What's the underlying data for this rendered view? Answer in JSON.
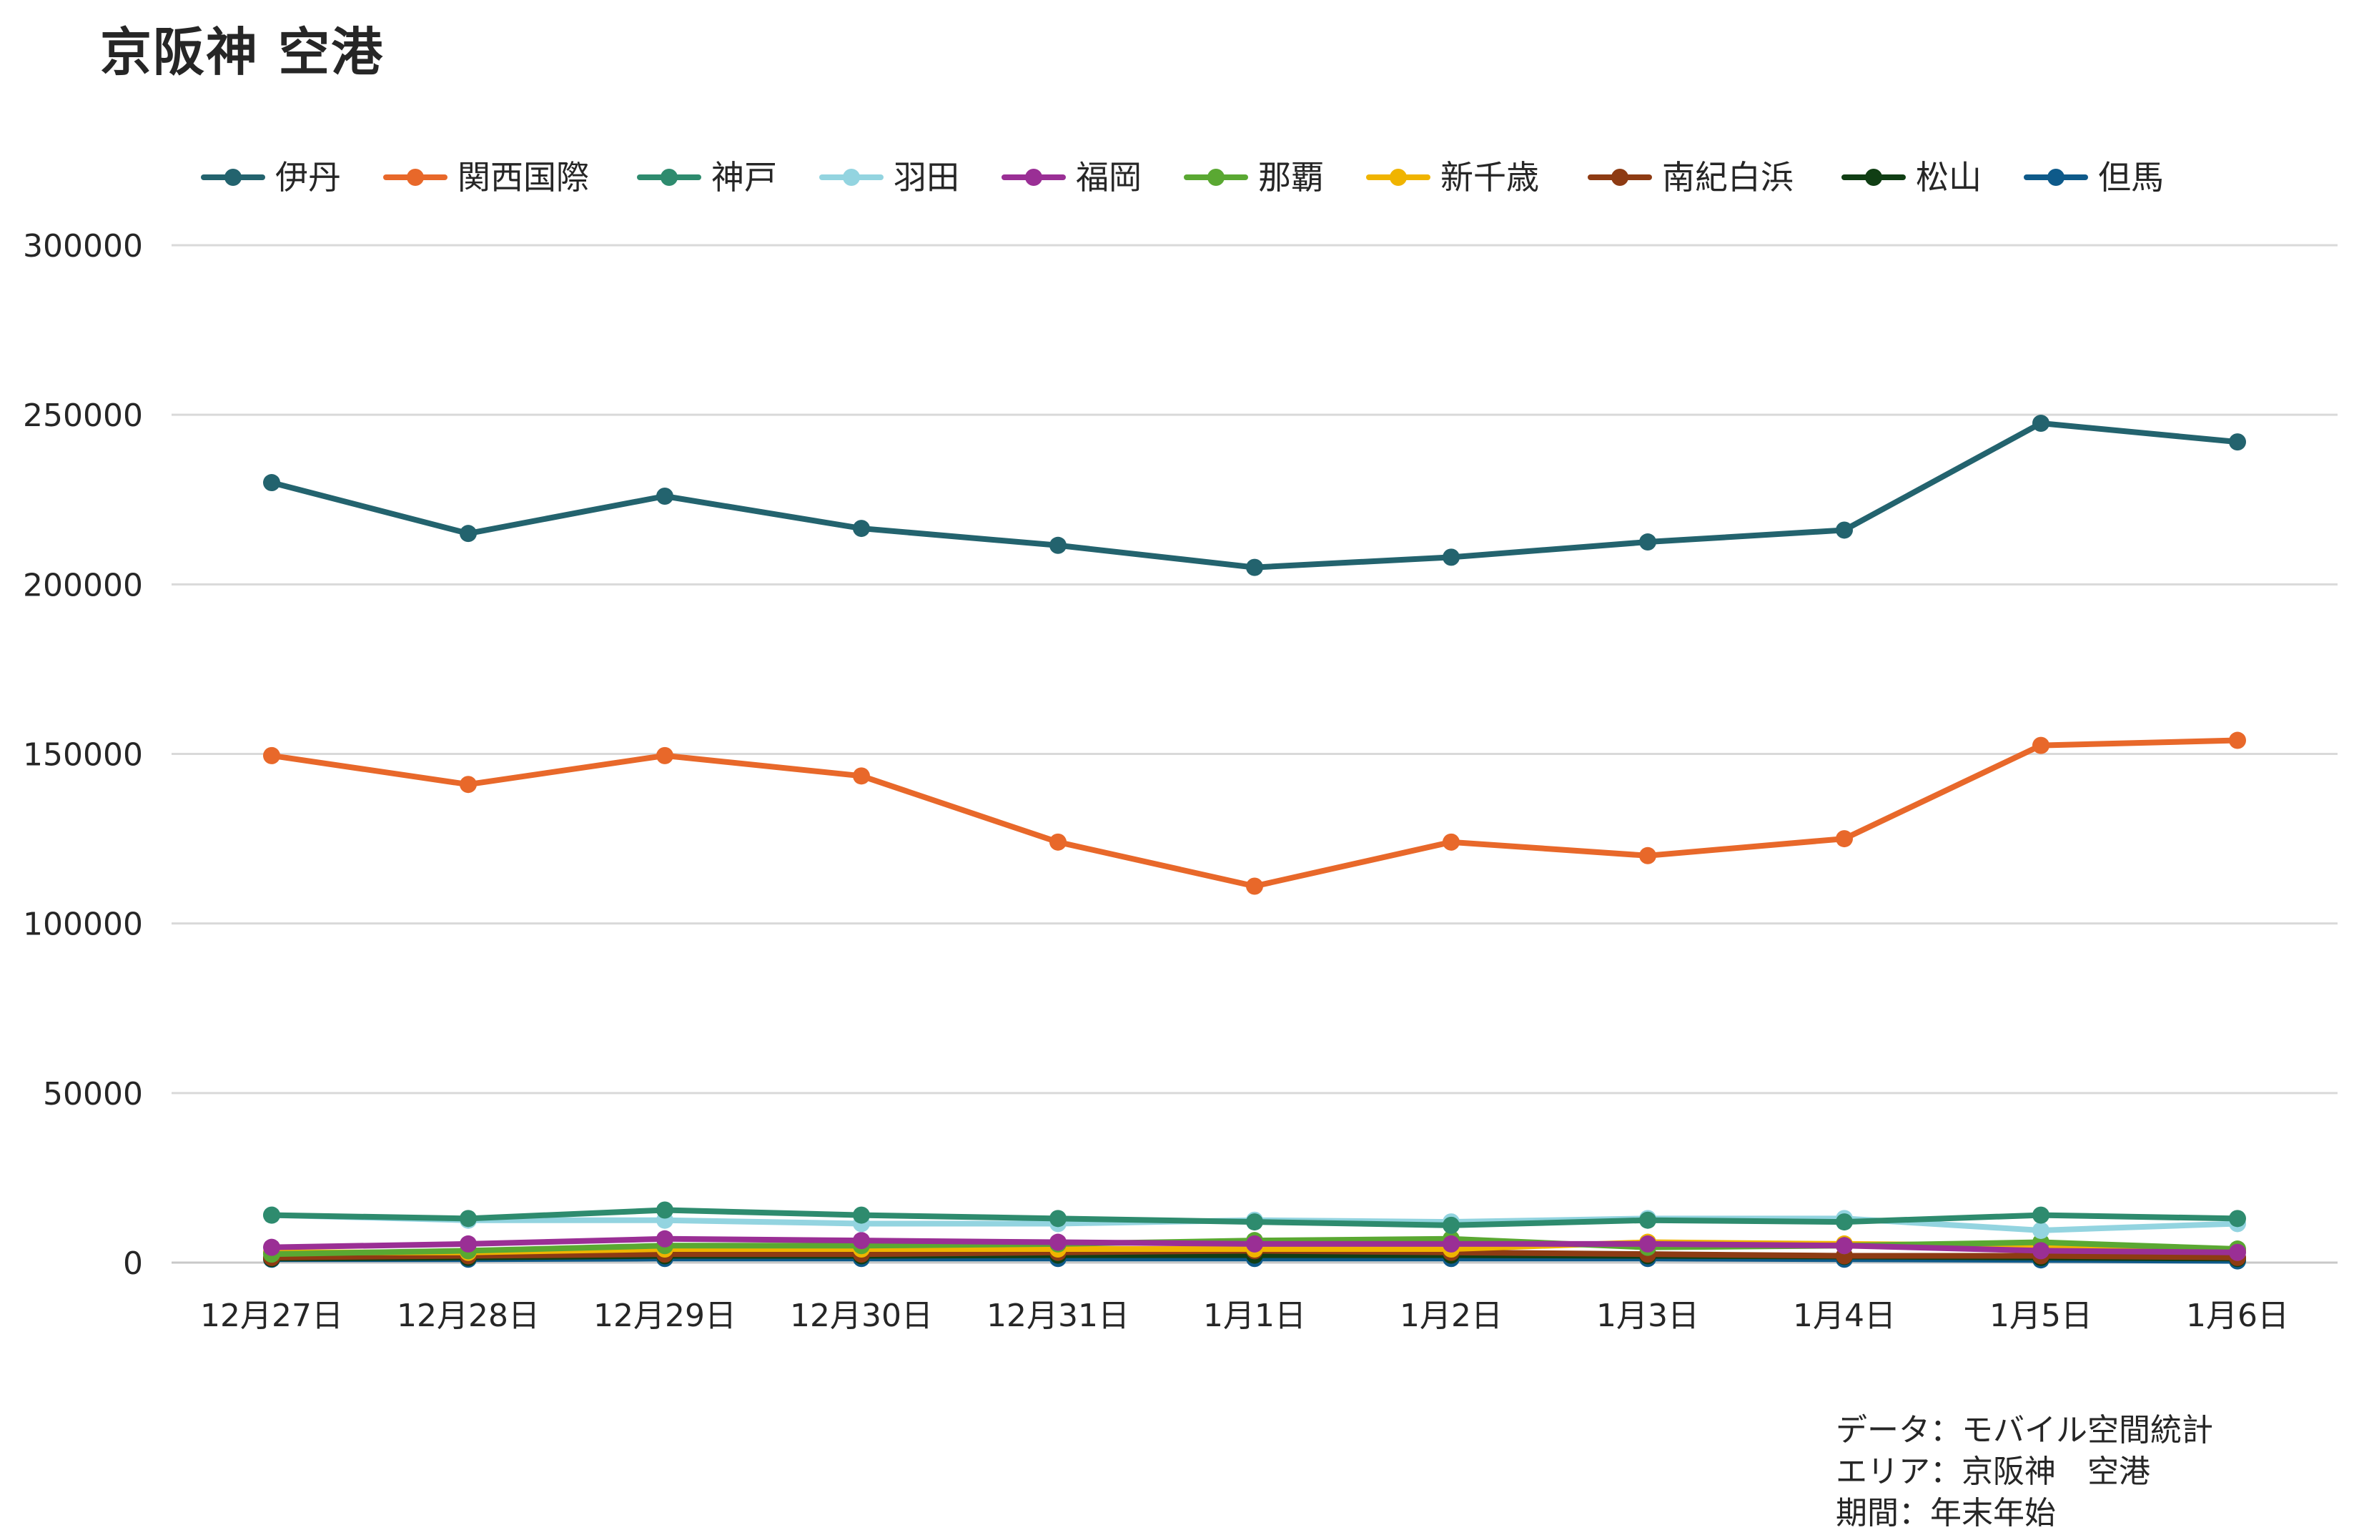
{
  "chart_data": {
    "type": "line",
    "title": "京阪神 空港",
    "xlabel": "",
    "ylabel": "",
    "ylim": [
      0,
      300000
    ],
    "yticks": [
      0,
      50000,
      100000,
      150000,
      200000,
      250000,
      300000
    ],
    "grid": true,
    "legend_position": "top",
    "categories": [
      "12月27日",
      "12月28日",
      "12月29日",
      "12月30日",
      "12月31日",
      "1月1日",
      "1月2日",
      "1月3日",
      "1月4日",
      "1月5日",
      "1月6日"
    ],
    "series": [
      {
        "name": "伊丹",
        "color": "#23636e",
        "values": [
          230000,
          215000,
          226000,
          216500,
          211500,
          205000,
          208000,
          212500,
          216000,
          247500,
          242000
        ]
      },
      {
        "name": "関西国際",
        "color": "#e8682a",
        "values": [
          149500,
          141000,
          149500,
          143500,
          124000,
          111000,
          124000,
          120000,
          125000,
          152500,
          154000
        ]
      },
      {
        "name": "神戸",
        "color": "#2e8b6e",
        "values": [
          14000,
          13000,
          15500,
          14000,
          13000,
          12000,
          11000,
          12500,
          12000,
          14000,
          13000
        ]
      },
      {
        "name": "羽田",
        "color": "#93d4e0",
        "values": [
          14000,
          12500,
          12500,
          11500,
          11500,
          12500,
          12000,
          13000,
          13000,
          9500,
          11500
        ]
      },
      {
        "name": "福岡",
        "color": "#9a2f95",
        "values": [
          4500,
          5500,
          7000,
          6500,
          6000,
          5500,
          5500,
          5500,
          5000,
          3500,
          3000
        ]
      },
      {
        "name": "那覇",
        "color": "#5aa832",
        "values": [
          2500,
          3500,
          5000,
          5000,
          5500,
          6500,
          7000,
          4500,
          5000,
          6000,
          4000
        ]
      },
      {
        "name": "新千歳",
        "color": "#f0b400",
        "values": [
          3000,
          3000,
          4000,
          4000,
          4000,
          4000,
          4000,
          6000,
          5500,
          5000,
          3500
        ]
      },
      {
        "name": "南紀白浜",
        "color": "#8e3b13",
        "values": [
          1500,
          2000,
          2500,
          2500,
          3000,
          3500,
          3000,
          2500,
          2000,
          2000,
          1500
        ]
      },
      {
        "name": "松山",
        "color": "#103e14",
        "values": [
          1200,
          1500,
          2000,
          2000,
          2200,
          2200,
          2200,
          2000,
          1800,
          1500,
          1200
        ]
      },
      {
        "name": "但馬",
        "color": "#0e5a8a",
        "values": [
          1000,
          1000,
          1200,
          1200,
          1200,
          1200,
          1200,
          1200,
          1000,
          800,
          500
        ]
      }
    ]
  },
  "notes": {
    "data_source": "データ：モバイル空間統計",
    "area": "エリア：京阪神　空港",
    "period": "期間：年末年始"
  }
}
